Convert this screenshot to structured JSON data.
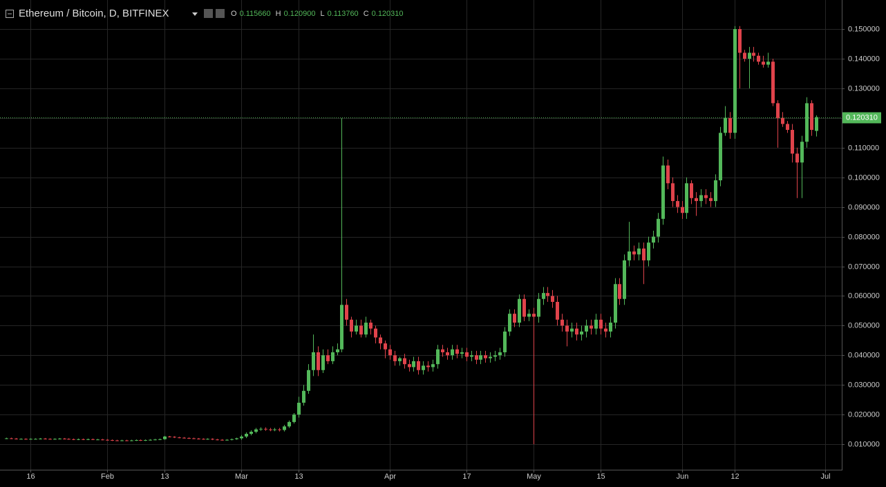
{
  "chart_data": {
    "type": "candlestick",
    "title": "Ethereum / Bitcoin, D, BITFINEX",
    "ohlc_legend": [
      {
        "label": "O",
        "value": 0.11566,
        "value_label": "0.115660"
      },
      {
        "label": "H",
        "value": 0.1209,
        "value_label": "0.120900"
      },
      {
        "label": "L",
        "value": 0.11376,
        "value_label": "0.113760"
      },
      {
        "label": "C",
        "value": 0.12031,
        "value_label": "0.120310"
      }
    ],
    "last_price": {
      "value": 0.12031,
      "label": "0.120310"
    },
    "up_color": "#53b85a",
    "down_color": "#e0434b",
    "categories": [
      "Jan 11",
      "Jan 12",
      "Jan 13",
      "Jan 14",
      "Jan 15",
      "Jan 16",
      "Jan 17",
      "Jan 18",
      "Jan 19",
      "Jan 20",
      "Jan 21",
      "Jan 22",
      "Jan 23",
      "Jan 24",
      "Jan 25",
      "Jan 26",
      "Jan 27",
      "Jan 28",
      "Jan 29",
      "Jan 30",
      "Jan 31",
      "Feb 1",
      "Feb 2",
      "Feb 3",
      "Feb 4",
      "Feb 5",
      "Feb 6",
      "Feb 7",
      "Feb 8",
      "Feb 9",
      "Feb 10",
      "Feb 11",
      "Feb 12",
      "Feb 13",
      "Feb 14",
      "Feb 15",
      "Feb 16",
      "Feb 17",
      "Feb 18",
      "Feb 19",
      "Feb 20",
      "Feb 21",
      "Feb 22",
      "Feb 23",
      "Feb 24",
      "Feb 25",
      "Feb 26",
      "Feb 27",
      "Feb 28",
      "Mar 1",
      "Mar 2",
      "Mar 3",
      "Mar 4",
      "Mar 5",
      "Mar 6",
      "Mar 7",
      "Mar 8",
      "Mar 9",
      "Mar 10",
      "Mar 11",
      "Mar 12",
      "Mar 13",
      "Mar 14",
      "Mar 15",
      "Mar 16",
      "Mar 17",
      "Mar 18",
      "Mar 19",
      "Mar 20",
      "Mar 21",
      "Mar 22",
      "Mar 23",
      "Mar 24",
      "Mar 25",
      "Mar 26",
      "Mar 27",
      "Mar 28",
      "Mar 29",
      "Mar 30",
      "Mar 31",
      "Apr 1",
      "Apr 2",
      "Apr 3",
      "Apr 4",
      "Apr 5",
      "Apr 6",
      "Apr 7",
      "Apr 8",
      "Apr 9",
      "Apr 10",
      "Apr 11",
      "Apr 12",
      "Apr 13",
      "Apr 14",
      "Apr 15",
      "Apr 16",
      "Apr 17",
      "Apr 18",
      "Apr 19",
      "Apr 20",
      "Apr 21",
      "Apr 22",
      "Apr 23",
      "Apr 24",
      "Apr 25",
      "Apr 26",
      "Apr 27",
      "Apr 28",
      "Apr 29",
      "Apr 30",
      "May 1",
      "May 2",
      "May 3",
      "May 4",
      "May 5",
      "May 6",
      "May 7",
      "May 8",
      "May 9",
      "May 10",
      "May 11",
      "May 12",
      "May 13",
      "May 14",
      "May 15",
      "May 16",
      "May 17",
      "May 18",
      "May 19",
      "May 20",
      "May 21",
      "May 22",
      "May 23",
      "May 24",
      "May 25",
      "May 26",
      "May 27",
      "May 28",
      "May 29",
      "May 30",
      "May 31",
      "Jun 1",
      "Jun 2",
      "Jun 3",
      "Jun 4",
      "Jun 5",
      "Jun 6",
      "Jun 7",
      "Jun 8",
      "Jun 9",
      "Jun 10",
      "Jun 11",
      "Jun 12",
      "Jun 13",
      "Jun 14",
      "Jun 15",
      "Jun 16",
      "Jun 17",
      "Jun 18",
      "Jun 19",
      "Jun 20",
      "Jun 21",
      "Jun 22",
      "Jun 23",
      "Jun 24",
      "Jun 25",
      "Jun 26",
      "Jun 27",
      "Jun 28",
      "Jun 29",
      "Jun 30",
      "Jul 1"
    ],
    "open": [
      0.0119,
      0.012,
      0.0119,
      0.0118,
      0.0118,
      0.0117,
      0.0118,
      0.0118,
      0.0119,
      0.0118,
      0.0117,
      0.0118,
      0.0119,
      0.0118,
      0.0117,
      0.0116,
      0.0117,
      0.0116,
      0.0117,
      0.0116,
      0.0116,
      0.0115,
      0.0114,
      0.0113,
      0.0112,
      0.0113,
      0.0112,
      0.0113,
      0.0114,
      0.0113,
      0.0114,
      0.0115,
      0.0116,
      0.0117,
      0.0126,
      0.0125,
      0.0123,
      0.0122,
      0.0121,
      0.012,
      0.0119,
      0.0118,
      0.0117,
      0.0118,
      0.0116,
      0.0115,
      0.0114,
      0.0115,
      0.0117,
      0.012,
      0.0126,
      0.0135,
      0.0142,
      0.015,
      0.0152,
      0.015,
      0.0149,
      0.015,
      0.0148,
      0.016,
      0.0175,
      0.02,
      0.024,
      0.028,
      0.035,
      0.041,
      0.035,
      0.04,
      0.038,
      0.041,
      0.042,
      0.057,
      0.052,
      0.048,
      0.05,
      0.047,
      0.051,
      0.049,
      0.046,
      0.044,
      0.042,
      0.04,
      0.038,
      0.039,
      0.037,
      0.036,
      0.038,
      0.035,
      0.0365,
      0.036,
      0.037,
      0.042,
      0.041,
      0.04,
      0.042,
      0.0405,
      0.041,
      0.0395,
      0.04,
      0.0385,
      0.04,
      0.039,
      0.0395,
      0.04,
      0.041,
      0.048,
      0.054,
      0.051,
      0.059,
      0.053,
      0.054,
      0.053,
      0.059,
      0.061,
      0.06,
      0.058,
      0.052,
      0.05,
      0.048,
      0.049,
      0.047,
      0.048,
      0.05,
      0.049,
      0.052,
      0.049,
      0.048,
      0.051,
      0.064,
      0.059,
      0.072,
      0.075,
      0.074,
      0.076,
      0.072,
      0.078,
      0.08,
      0.086,
      0.104,
      0.098,
      0.092,
      0.09,
      0.088,
      0.098,
      0.093,
      0.092,
      0.094,
      0.093,
      0.092,
      0.099,
      0.115,
      0.12,
      0.115,
      0.15,
      0.142,
      0.14,
      0.142,
      0.141,
      0.139,
      0.138,
      0.139,
      0.125,
      0.12,
      0.118,
      0.116,
      0.108,
      0.105,
      0.112,
      0.125,
      0.11566,
      null,
      null
    ],
    "high": [
      0.0122,
      0.0122,
      0.0121,
      0.012,
      0.012,
      0.012,
      0.012,
      0.0121,
      0.0121,
      0.012,
      0.012,
      0.0121,
      0.0121,
      0.012,
      0.0119,
      0.0119,
      0.0119,
      0.0119,
      0.0119,
      0.0118,
      0.0118,
      0.0117,
      0.0116,
      0.0115,
      0.0115,
      0.0115,
      0.0115,
      0.0116,
      0.0116,
      0.0116,
      0.0117,
      0.0118,
      0.0119,
      0.0128,
      0.0128,
      0.0127,
      0.0125,
      0.0124,
      0.0123,
      0.0122,
      0.0121,
      0.012,
      0.012,
      0.012,
      0.0118,
      0.0117,
      0.0117,
      0.0119,
      0.0122,
      0.0131,
      0.014,
      0.0147,
      0.0155,
      0.0157,
      0.0157,
      0.0155,
      0.0155,
      0.0155,
      0.0165,
      0.018,
      0.0205,
      0.026,
      0.03,
      0.037,
      0.047,
      0.043,
      0.042,
      0.042,
      0.043,
      0.044,
      0.12,
      0.059,
      0.053,
      0.052,
      0.052,
      0.053,
      0.052,
      0.05,
      0.047,
      0.045,
      0.0435,
      0.0415,
      0.0395,
      0.0405,
      0.0385,
      0.0395,
      0.0395,
      0.038,
      0.038,
      0.0385,
      0.0435,
      0.0435,
      0.0425,
      0.0435,
      0.0435,
      0.0425,
      0.0425,
      0.0415,
      0.0415,
      0.0415,
      0.0415,
      0.041,
      0.0415,
      0.0425,
      0.0495,
      0.0555,
      0.0555,
      0.0605,
      0.0605,
      0.0555,
      0.056,
      0.061,
      0.063,
      0.063,
      0.062,
      0.06,
      0.054,
      0.052,
      0.051,
      0.051,
      0.05,
      0.052,
      0.052,
      0.054,
      0.054,
      0.051,
      0.053,
      0.066,
      0.066,
      0.074,
      0.085,
      0.077,
      0.078,
      0.078,
      0.08,
      0.082,
      0.088,
      0.107,
      0.106,
      0.1,
      0.094,
      0.092,
      0.1,
      0.099,
      0.095,
      0.096,
      0.096,
      0.095,
      0.101,
      0.117,
      0.124,
      0.122,
      0.151,
      0.151,
      0.143,
      0.144,
      0.144,
      0.142,
      0.141,
      0.142,
      0.14,
      0.126,
      0.122,
      0.119,
      0.118,
      0.11,
      0.114,
      0.127,
      0.126,
      0.1209,
      null,
      null
    ],
    "low": [
      0.0117,
      0.0117,
      0.0116,
      0.0116,
      0.0115,
      0.0115,
      0.0116,
      0.0116,
      0.0116,
      0.0115,
      0.0115,
      0.0116,
      0.0116,
      0.0115,
      0.0114,
      0.0114,
      0.0114,
      0.0114,
      0.0114,
      0.0114,
      0.0113,
      0.0112,
      0.0111,
      0.011,
      0.011,
      0.011,
      0.011,
      0.0111,
      0.0111,
      0.0111,
      0.0112,
      0.0113,
      0.0114,
      0.0115,
      0.0123,
      0.0121,
      0.012,
      0.0119,
      0.0118,
      0.0117,
      0.0116,
      0.0115,
      0.0115,
      0.0114,
      0.0113,
      0.0112,
      0.0112,
      0.0113,
      0.0115,
      0.0115,
      0.0121,
      0.013,
      0.0137,
      0.0145,
      0.0145,
      0.0144,
      0.0144,
      0.0143,
      0.0143,
      0.0155,
      0.017,
      0.019,
      0.023,
      0.027,
      0.033,
      0.033,
      0.034,
      0.037,
      0.037,
      0.04,
      0.041,
      0.05,
      0.046,
      0.047,
      0.046,
      0.046,
      0.047,
      0.044,
      0.042,
      0.039,
      0.0385,
      0.0365,
      0.0365,
      0.0355,
      0.0345,
      0.0345,
      0.0335,
      0.0335,
      0.0345,
      0.0345,
      0.0355,
      0.0395,
      0.0385,
      0.0385,
      0.039,
      0.039,
      0.038,
      0.038,
      0.037,
      0.037,
      0.0375,
      0.0375,
      0.038,
      0.0385,
      0.0395,
      0.0465,
      0.0495,
      0.0495,
      0.0515,
      0.0515,
      0.01,
      0.051,
      0.057,
      0.058,
      0.056,
      0.05,
      0.048,
      0.043,
      0.046,
      0.045,
      0.045,
      0.046,
      0.047,
      0.047,
      0.047,
      0.046,
      0.046,
      0.049,
      0.057,
      0.057,
      0.07,
      0.072,
      0.072,
      0.064,
      0.07,
      0.076,
      0.078,
      0.084,
      0.096,
      0.09,
      0.088,
      0.086,
      0.086,
      0.091,
      0.087,
      0.09,
      0.091,
      0.09,
      0.09,
      0.097,
      0.114,
      0.113,
      0.113,
      0.13,
      0.139,
      0.13,
      0.139,
      0.138,
      0.137,
      0.137,
      0.124,
      0.11,
      0.117,
      0.115,
      0.105,
      0.093,
      0.093,
      0.11,
      0.114,
      0.11376,
      null,
      null
    ],
    "close": [
      0.012,
      0.0119,
      0.0118,
      0.0118,
      0.0117,
      0.0118,
      0.0118,
      0.0119,
      0.0118,
      0.0117,
      0.0118,
      0.0119,
      0.0118,
      0.0117,
      0.0116,
      0.0117,
      0.0116,
      0.0117,
      0.0116,
      0.0116,
      0.0115,
      0.0114,
      0.0113,
      0.0112,
      0.0113,
      0.0112,
      0.0113,
      0.0114,
      0.0113,
      0.0114,
      0.0115,
      0.0116,
      0.0117,
      0.0126,
      0.0125,
      0.0123,
      0.0122,
      0.0121,
      0.012,
      0.0119,
      0.0118,
      0.0117,
      0.0118,
      0.0116,
      0.0115,
      0.0114,
      0.0115,
      0.0117,
      0.012,
      0.0126,
      0.0135,
      0.0142,
      0.015,
      0.0152,
      0.015,
      0.0149,
      0.015,
      0.0148,
      0.016,
      0.0175,
      0.02,
      0.024,
      0.028,
      0.035,
      0.041,
      0.035,
      0.04,
      0.038,
      0.041,
      0.042,
      0.057,
      0.052,
      0.048,
      0.05,
      0.047,
      0.051,
      0.049,
      0.046,
      0.044,
      0.042,
      0.04,
      0.038,
      0.039,
      0.037,
      0.036,
      0.038,
      0.035,
      0.0365,
      0.036,
      0.037,
      0.042,
      0.041,
      0.04,
      0.042,
      0.0405,
      0.041,
      0.0395,
      0.04,
      0.0385,
      0.04,
      0.039,
      0.0395,
      0.04,
      0.041,
      0.048,
      0.054,
      0.051,
      0.059,
      0.053,
      0.054,
      0.053,
      0.059,
      0.061,
      0.06,
      0.058,
      0.052,
      0.05,
      0.048,
      0.049,
      0.047,
      0.048,
      0.05,
      0.049,
      0.052,
      0.049,
      0.048,
      0.051,
      0.064,
      0.059,
      0.072,
      0.075,
      0.074,
      0.076,
      0.072,
      0.078,
      0.08,
      0.086,
      0.104,
      0.098,
      0.092,
      0.09,
      0.088,
      0.098,
      0.093,
      0.092,
      0.094,
      0.093,
      0.092,
      0.099,
      0.115,
      0.12,
      0.115,
      0.15,
      0.142,
      0.14,
      0.142,
      0.141,
      0.139,
      0.138,
      0.139,
      0.125,
      0.12,
      0.118,
      0.116,
      0.108,
      0.105,
      0.112,
      0.125,
      0.116,
      0.12031,
      null,
      null
    ],
    "xticks": [
      {
        "value": "Jan 16",
        "label": "16"
      },
      {
        "value": "Feb 1",
        "label": "Feb"
      },
      {
        "value": "Feb 13",
        "label": "13"
      },
      {
        "value": "Mar 1",
        "label": "Mar"
      },
      {
        "value": "Mar 13",
        "label": "13"
      },
      {
        "value": "Apr 1",
        "label": "Apr"
      },
      {
        "value": "Apr 17",
        "label": "17"
      },
      {
        "value": "May 1",
        "label": "May"
      },
      {
        "value": "May 15",
        "label": "15"
      },
      {
        "value": "Jun 1",
        "label": "Jun"
      },
      {
        "value": "Jun 12",
        "label": "12"
      },
      {
        "value": "Jul 1",
        "label": "Jul"
      }
    ],
    "ylim": [
      0.0014,
      0.1598
    ],
    "yticks": [
      {
        "value": 0.01,
        "label": "0.010000"
      },
      {
        "value": 0.02,
        "label": "0.020000"
      },
      {
        "value": 0.03,
        "label": "0.030000"
      },
      {
        "value": 0.04,
        "label": "0.040000"
      },
      {
        "value": 0.05,
        "label": "0.050000"
      },
      {
        "value": 0.06,
        "label": "0.060000"
      },
      {
        "value": 0.07,
        "label": "0.070000"
      },
      {
        "value": 0.08,
        "label": "0.080000"
      },
      {
        "value": 0.09,
        "label": "0.090000"
      },
      {
        "value": 0.1,
        "label": "0.100000"
      },
      {
        "value": 0.11,
        "label": "0.110000"
      },
      {
        "value": 0.12,
        "label": "0.120000"
      },
      {
        "value": 0.13,
        "label": "0.130000"
      },
      {
        "value": 0.14,
        "label": "0.140000"
      },
      {
        "value": 0.15,
        "label": "0.150000"
      }
    ],
    "grid": true
  }
}
